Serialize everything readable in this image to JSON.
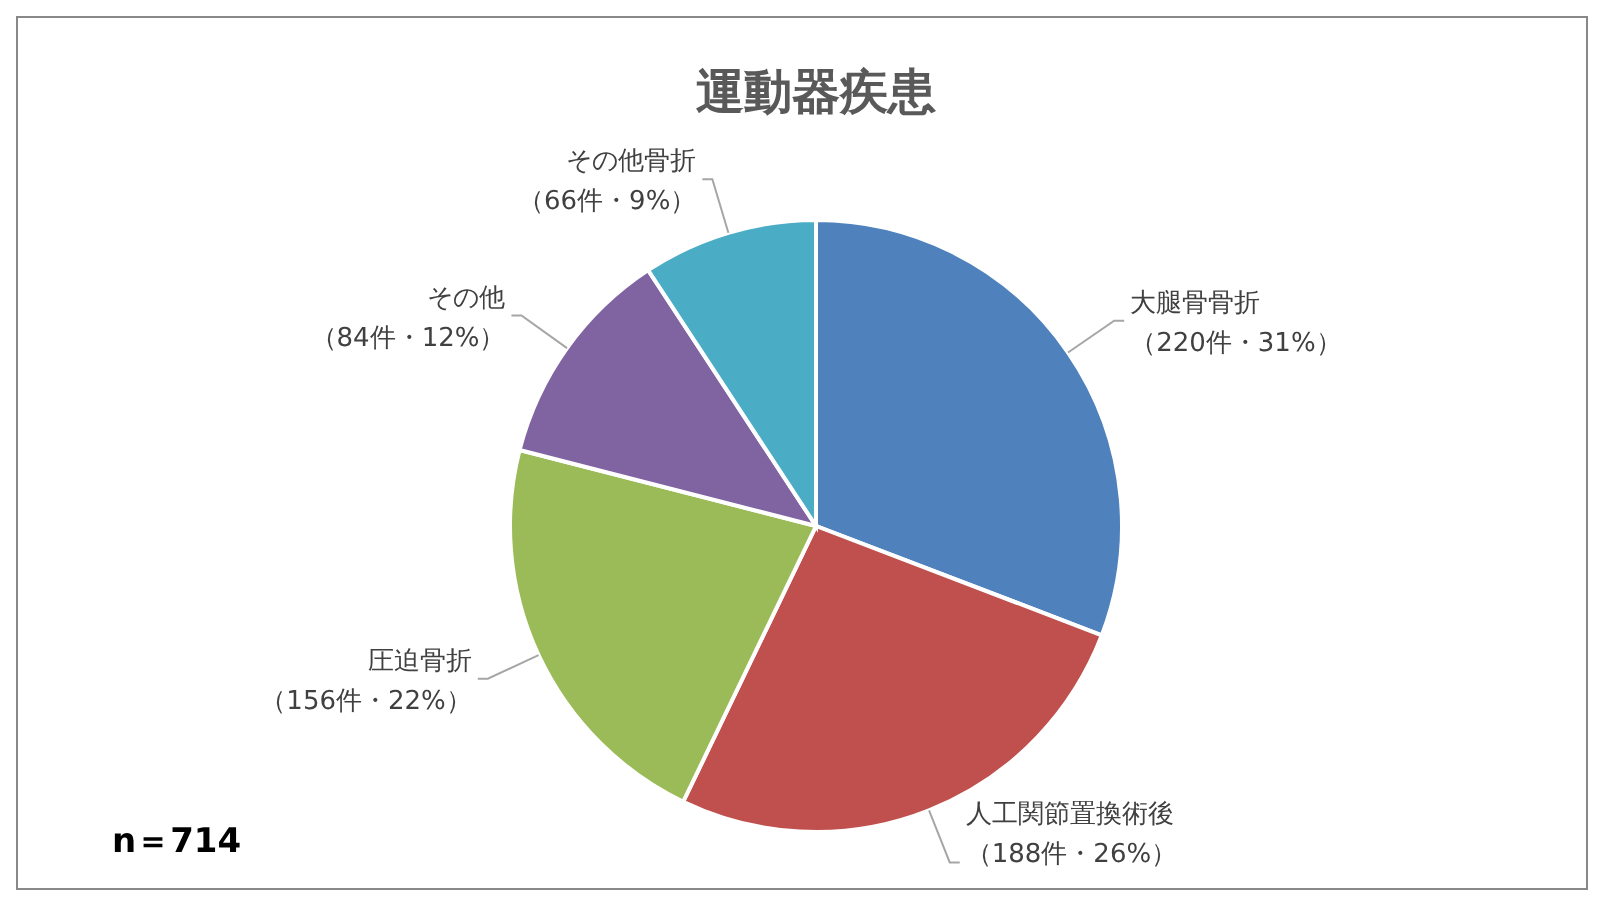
{
  "chart_data": {
    "type": "pie",
    "title": "運動器疾患",
    "categories": [
      "大腿骨骨折",
      "人工関節置換術後",
      "圧迫骨折",
      "その他",
      "その他骨折"
    ],
    "values": [
      220,
      188,
      156,
      84,
      66
    ],
    "colors": [
      "#4f81bd",
      "#c0504d",
      "#9bbb59",
      "#8064a2",
      "#4bacc6"
    ],
    "value_labels": [
      "（220件・31%）",
      "（188件・26%）",
      "（156件・22%）",
      "（84件・12%）",
      "（66件・9%）"
    ],
    "annotations": [
      "n＝714"
    ]
  }
}
